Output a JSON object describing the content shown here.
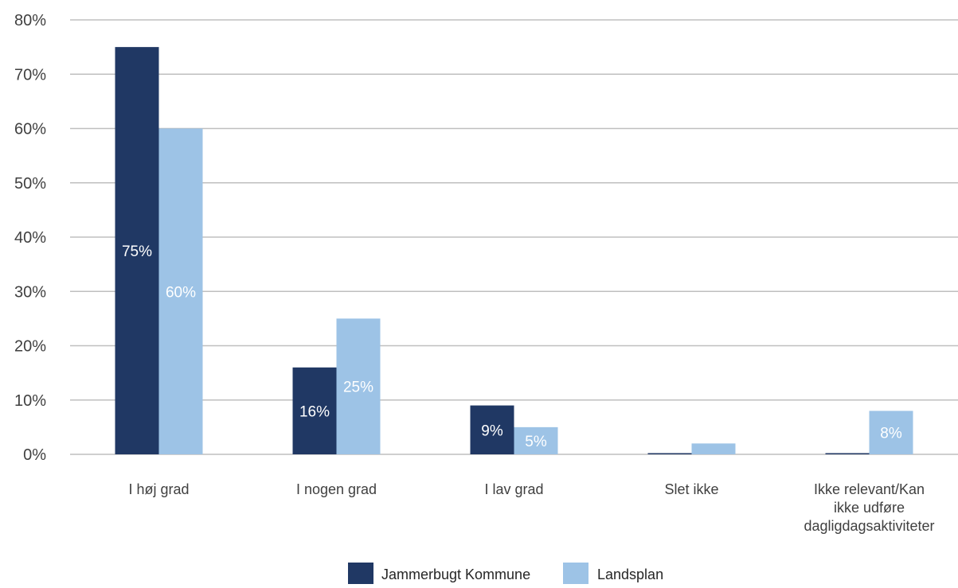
{
  "chart_data": {
    "type": "bar",
    "categories": [
      [
        "I høj grad"
      ],
      [
        "I nogen grad"
      ],
      [
        "I lav grad"
      ],
      [
        "Slet ikke"
      ],
      [
        "Ikke relevant/Kan",
        "ikke udføre",
        "dagligdagsaktiviteter"
      ]
    ],
    "series": [
      {
        "name": "Jammerbugt Kommune",
        "color": "#203864",
        "values": [
          75,
          16,
          9,
          0,
          0
        ],
        "labels": [
          "75%",
          "16%",
          "9%",
          "",
          ""
        ]
      },
      {
        "name": "Landsplan",
        "color": "#9DC3E6",
        "values": [
          60,
          25,
          5,
          2,
          8
        ],
        "labels": [
          "60%",
          "25%",
          "5%",
          "",
          "8%"
        ]
      }
    ],
    "ylim": [
      0,
      80
    ],
    "yticks": [
      0,
      10,
      20,
      30,
      40,
      50,
      60,
      70,
      80
    ],
    "ytick_labels": [
      "0%",
      "10%",
      "20%",
      "30%",
      "40%",
      "50%",
      "60%",
      "70%",
      "80%"
    ],
    "grid": true,
    "legend_position": "bottom",
    "gridline_color": "#BFBFBF"
  }
}
